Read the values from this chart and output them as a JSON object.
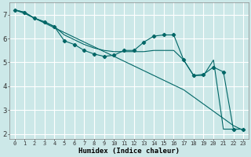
{
  "xlabel": "Humidex (Indice chaleur)",
  "bg_color": "#cce8e8",
  "grid_color": "#ffffff",
  "line_color": "#006666",
  "xlim": [
    -0.5,
    23.5
  ],
  "ylim": [
    1.8,
    7.5
  ],
  "series_marked": {
    "x": [
      0,
      1,
      2,
      3,
      4,
      5,
      6,
      7,
      8,
      9,
      10,
      11,
      12,
      13,
      14,
      15,
      16,
      17,
      18,
      19,
      20,
      21,
      22,
      23
    ],
    "y": [
      7.2,
      7.1,
      6.85,
      6.7,
      6.5,
      5.9,
      5.75,
      5.5,
      5.35,
      5.25,
      5.3,
      5.5,
      5.5,
      5.85,
      6.1,
      6.15,
      6.15,
      5.1,
      4.45,
      4.5,
      4.8,
      4.6,
      2.2,
      2.2
    ]
  },
  "series_line1": {
    "x": [
      0,
      1,
      2,
      3,
      4,
      5,
      6,
      7,
      8,
      9,
      10,
      11,
      12,
      13,
      14,
      15,
      16,
      17,
      18,
      19,
      20,
      21,
      22,
      23
    ],
    "y": [
      7.2,
      7.1,
      6.85,
      6.7,
      6.5,
      6.15,
      5.95,
      5.75,
      5.6,
      5.5,
      5.45,
      5.45,
      5.45,
      5.45,
      5.5,
      5.5,
      5.5,
      5.1,
      4.45,
      4.45,
      5.1,
      2.2,
      2.2,
      2.2
    ]
  },
  "series_line2": {
    "x": [
      0,
      1,
      2,
      3,
      4,
      5,
      6,
      7,
      8,
      9,
      10,
      11,
      12,
      13,
      14,
      15,
      16,
      17,
      18,
      19,
      20,
      21,
      22,
      23
    ],
    "y": [
      7.2,
      7.05,
      6.85,
      6.65,
      6.45,
      6.25,
      6.05,
      5.85,
      5.65,
      5.45,
      5.25,
      5.05,
      4.85,
      4.65,
      4.45,
      4.25,
      4.05,
      3.85,
      3.55,
      3.25,
      2.95,
      2.65,
      2.35,
      2.15
    ]
  }
}
